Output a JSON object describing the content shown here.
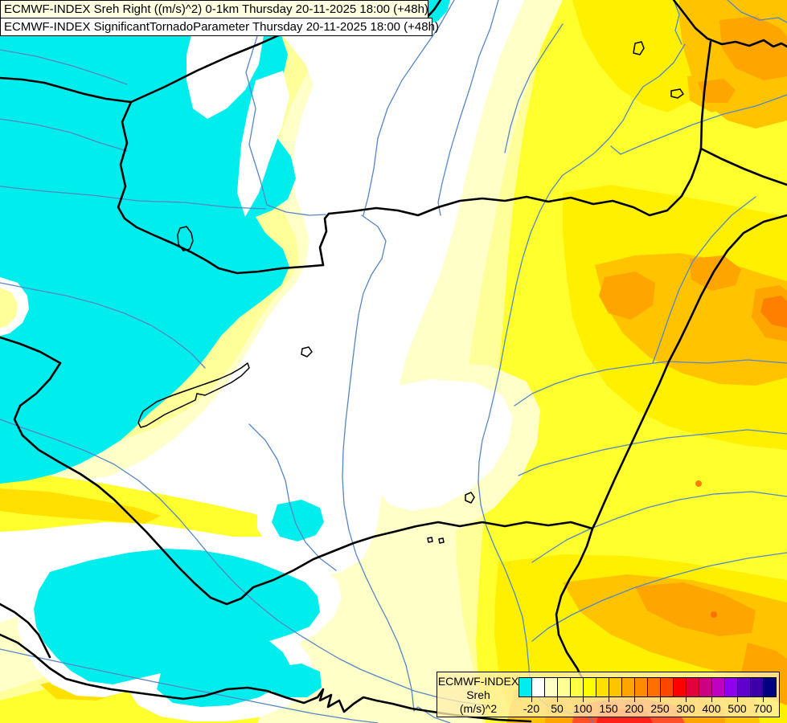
{
  "header": {
    "line1": "ECMWF-INDEX Sreh Right ((m/s)^2) 0-1km Thursday 20-11-2025 18:00 (+48h)",
    "line2": "ECMWF-INDEX SignificantTornadoParameter Thursday 20-11-2025 18:00 (+48h)"
  },
  "legend": {
    "title_line1": "ECMWF-INDEX",
    "title_line2": "Sreh",
    "title_line3": "(m/s)^2",
    "tick_labels": [
      "-20",
      "50",
      "100",
      "150",
      "200",
      "250",
      "300",
      "400",
      "500",
      "700"
    ],
    "colors": [
      "#00EDED",
      "#FFFFFF",
      "#FFFFC8",
      "#FFFF96",
      "#FFFF46",
      "#FFFF00",
      "#FFE100",
      "#FFC300",
      "#FFA500",
      "#FF8C00",
      "#FF7000",
      "#FF4600",
      "#FF0000",
      "#E4003C",
      "#CC0080",
      "#C000C0",
      "#9000F0",
      "#6000CC",
      "#3C00A8",
      "#000080"
    ],
    "accent_border_color": "#000000"
  },
  "map_palette": {
    "cyan": "#00EDED",
    "white": "#FFFFFF",
    "cream": "#FFFFC8",
    "pale_yellow": "#FFFF99",
    "yellow": "#FFFF2E",
    "gold": "#FFF000",
    "deep_gold": "#FFE000",
    "amber": "#FFC300",
    "orange": "#FFA500",
    "deep_orange": "#FF8000",
    "red_orange": "#FF5028",
    "red": "#FF2018",
    "river": "#5586C5",
    "border": "#000000"
  }
}
